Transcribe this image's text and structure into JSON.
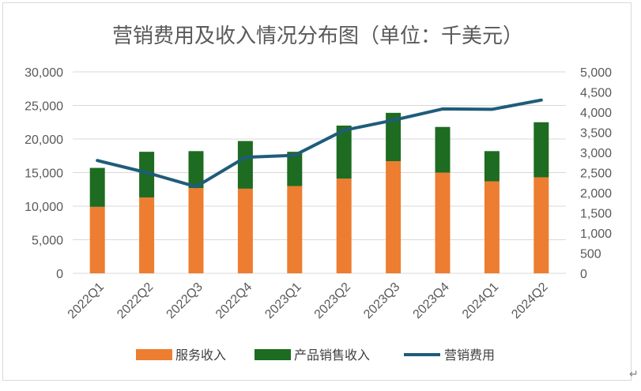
{
  "chart_data": {
    "type": "bar",
    "stacked": true,
    "title": "营销费用及收入情况分布图（单位：千美元）",
    "categories": [
      "2022Q1",
      "2022Q2",
      "2022Q3",
      "2022Q4",
      "2023Q1",
      "2023Q2",
      "2023Q3",
      "2023Q4",
      "2024Q1",
      "2024Q2"
    ],
    "series": [
      {
        "name": "服务收入",
        "type": "bar",
        "axis": "left",
        "color": "#ed7d31",
        "values": [
          9900,
          11300,
          12700,
          12600,
          13000,
          14100,
          16700,
          15000,
          13700,
          14300
        ]
      },
      {
        "name": "产品销售收入",
        "type": "bar",
        "axis": "left",
        "color": "#1e6b22",
        "values": [
          5800,
          6800,
          5500,
          7100,
          5100,
          7900,
          7200,
          6800,
          4500,
          8200
        ]
      },
      {
        "name": "营销费用",
        "type": "line",
        "axis": "right",
        "color": "#1f5c7a",
        "values": [
          2800,
          2500,
          2150,
          2880,
          2930,
          3550,
          3800,
          4080,
          4070,
          4300
        ]
      }
    ],
    "y_left": {
      "min": 0,
      "max": 30000,
      "step": 5000,
      "tick_labels": [
        "0",
        "5,000",
        "10,000",
        "15,000",
        "20,000",
        "25,000",
        "30,000"
      ]
    },
    "y_right": {
      "min": 0,
      "max": 5000,
      "step": 500,
      "tick_labels": [
        "0",
        "500",
        "1,000",
        "1,500",
        "2,000",
        "2,500",
        "3,000",
        "3,500",
        "4,000",
        "4,500",
        "5,000"
      ]
    },
    "grid": true,
    "legend_position": "bottom"
  },
  "footer": {
    "return_mark": "↵"
  }
}
